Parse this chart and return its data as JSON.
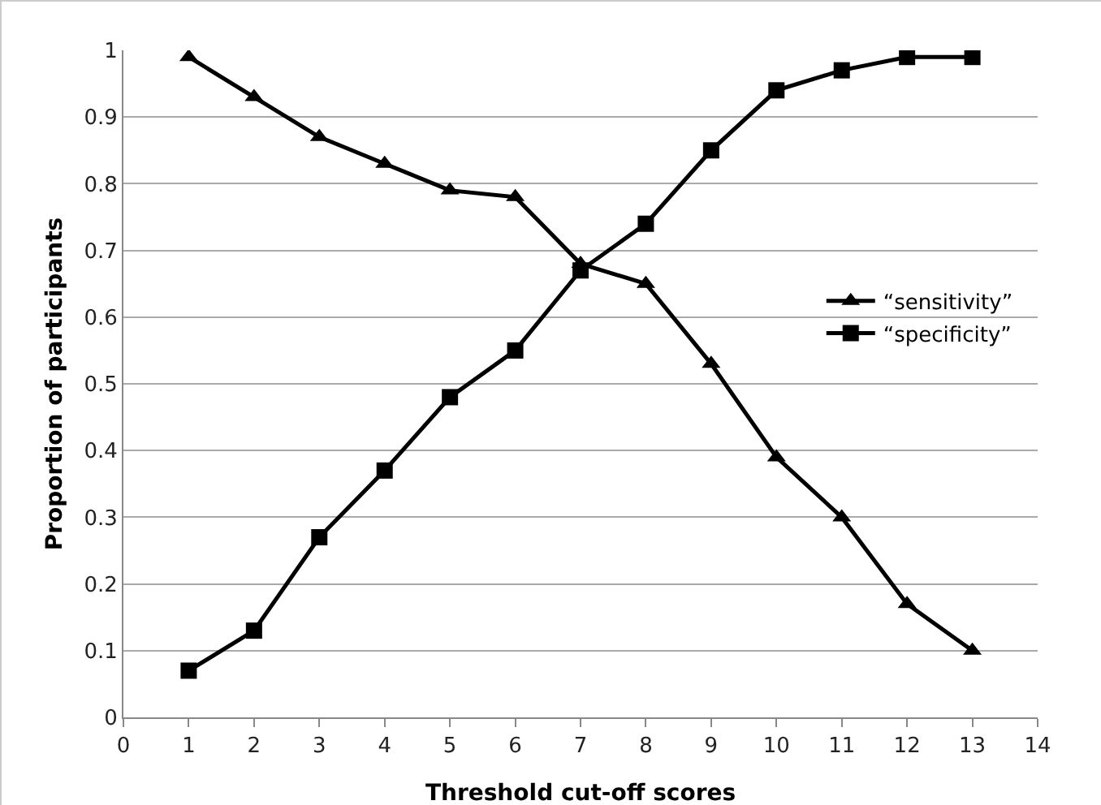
{
  "chart_data": {
    "type": "line",
    "xlabel": "Threshold cut-off scores",
    "ylabel": "Proportion of participants",
    "x": [
      1,
      2,
      3,
      4,
      5,
      6,
      7,
      8,
      9,
      10,
      11,
      12,
      13
    ],
    "series": [
      {
        "name": "“sensitivity”",
        "color": "#000000",
        "marker": "triangle",
        "values": [
          0.99,
          0.93,
          0.87,
          0.83,
          0.79,
          0.78,
          0.68,
          0.65,
          0.53,
          0.39,
          0.3,
          0.17,
          0.1
        ]
      },
      {
        "name": "“specificity”",
        "color": "#000000",
        "marker": "square",
        "values": [
          0.07,
          0.13,
          0.27,
          0.37,
          0.48,
          0.55,
          0.67,
          0.74,
          0.85,
          0.94,
          0.97,
          0.99,
          0.99
        ]
      }
    ],
    "xlim": [
      0,
      14
    ],
    "xticks": [
      0,
      1,
      2,
      3,
      4,
      5,
      6,
      7,
      8,
      9,
      10,
      11,
      12,
      13,
      14
    ],
    "ylim": [
      0,
      1
    ],
    "yticks": [
      0,
      0.1,
      0.2,
      0.3,
      0.4,
      0.5,
      0.6,
      0.7,
      0.8,
      0.9,
      1
    ],
    "grid": "y",
    "legend": "right",
    "line_style": "solid"
  }
}
